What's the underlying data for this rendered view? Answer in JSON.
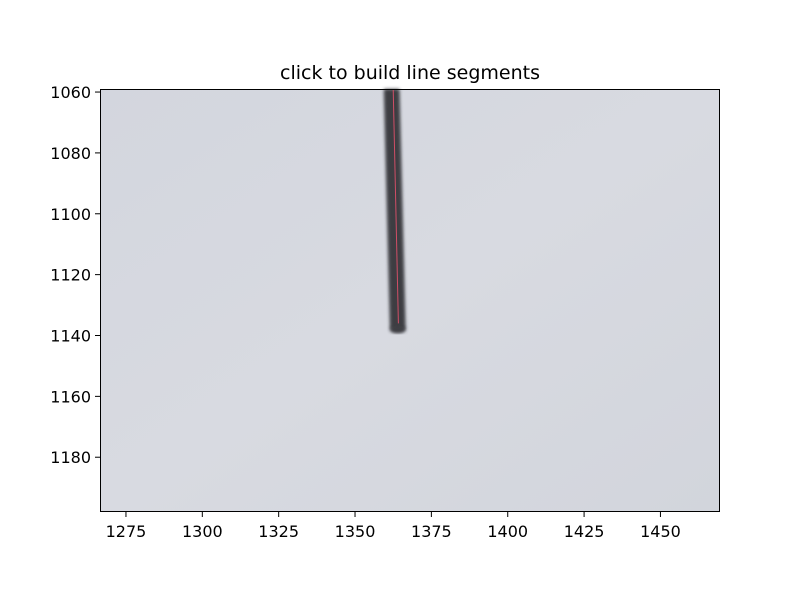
{
  "window": {
    "title": "click to build line segments"
  },
  "chart_data": {
    "type": "image",
    "title": "click to build line segments",
    "xlabel": "",
    "ylabel": "",
    "xlim": [
      1266.5,
      1469.5
    ],
    "ylim": [
      1198,
      1059
    ],
    "y_inverted": true,
    "xticks": [
      1275,
      1300,
      1325,
      1350,
      1375,
      1400,
      1425,
      1450
    ],
    "yticks": [
      1060,
      1080,
      1100,
      1120,
      1140,
      1160,
      1180
    ],
    "grid": false,
    "background_color": "#d5d7de",
    "stroke": {
      "color": "#3e3e42",
      "x_top": 1362,
      "x_bottom": 1364,
      "y_start": 1059,
      "y_end": 1138,
      "width_data": 5
    },
    "segment": {
      "color": "#e0506a",
      "x": [
        1362.5,
        1364.2
      ],
      "y": [
        1059,
        1136
      ]
    }
  }
}
